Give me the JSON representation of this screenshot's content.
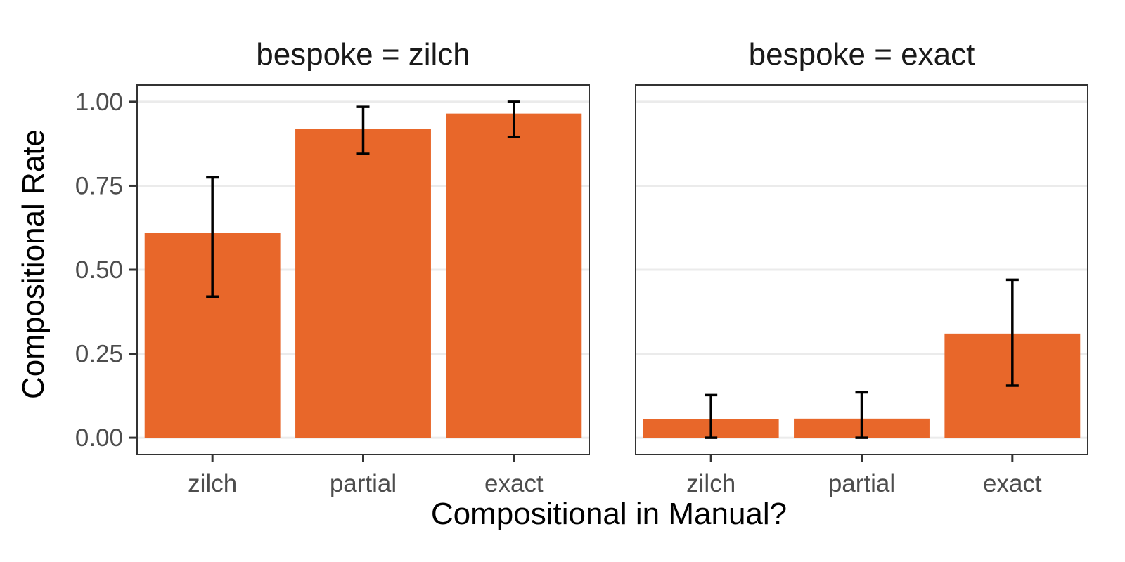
{
  "chart_data": {
    "type": "bar",
    "ylabel": "Compositional Rate",
    "xlabel": "Compositional in Manual?",
    "ylim": [
      -0.05,
      1.05
    ],
    "yticks": [
      "0.00",
      "0.25",
      "0.50",
      "0.75",
      "1.00"
    ],
    "ytick_values": [
      0,
      0.25,
      0.5,
      0.75,
      1.0
    ],
    "categories": [
      "zilch",
      "partial",
      "exact"
    ],
    "bar_color": "#E8672A",
    "grid": true,
    "facets": [
      {
        "title": "bespoke = zilch",
        "values": [
          0.61,
          0.92,
          0.965
        ],
        "error_low": [
          0.42,
          0.845,
          0.895
        ],
        "error_high": [
          0.775,
          0.985,
          1.0
        ]
      },
      {
        "title": "bespoke = exact",
        "values": [
          0.055,
          0.057,
          0.31
        ],
        "error_low": [
          0.0,
          0.0,
          0.155
        ],
        "error_high": [
          0.127,
          0.135,
          0.47
        ]
      }
    ]
  }
}
